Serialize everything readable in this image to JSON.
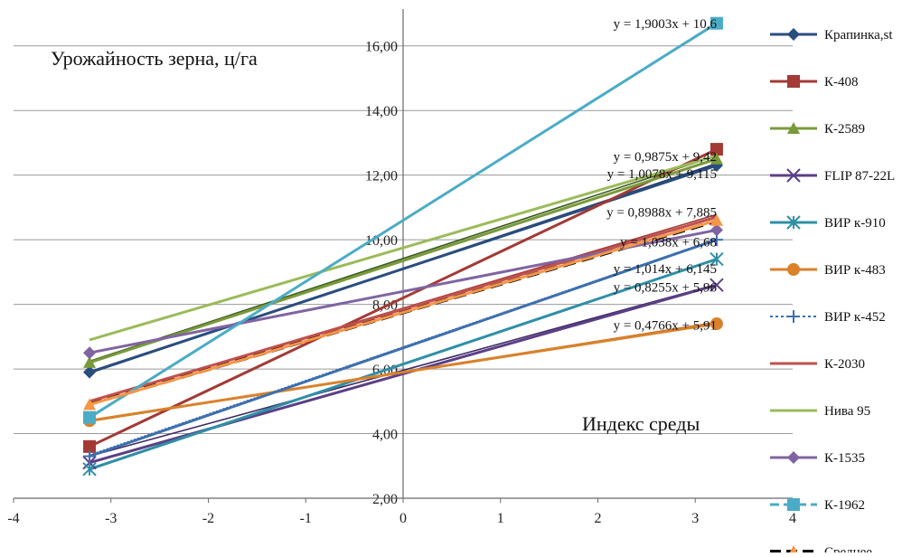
{
  "chart_data": {
    "type": "scatter",
    "ylabel": "Урожайность зерна, ц/га",
    "xlabel": "Индекс среды",
    "xlim": [
      -4,
      4
    ],
    "ylim": [
      2,
      17
    ],
    "x_ticks": [
      "-4",
      "-3",
      "-2",
      "-1",
      "0",
      "1",
      "2",
      "3",
      "4"
    ],
    "y_ticks": [
      "2,00",
      "4,00",
      "6,00",
      "8,00",
      "10,00",
      "12,00",
      "14,00",
      "16,00"
    ],
    "x_tick_values": [
      -4,
      -3,
      -2,
      -1,
      0,
      1,
      2,
      3,
      4
    ],
    "y_tick_values": [
      2,
      4,
      6,
      8,
      10,
      12,
      14,
      16
    ],
    "grid": "horizontal",
    "legend_position": "right",
    "x_points": [
      -3.22,
      3.22
    ],
    "series": [
      {
        "name": "Крапинка,st",
        "color": "#2a4d7f",
        "marker": "diamond",
        "points": [
          5.9,
          12.3
        ]
      },
      {
        "name": "К-408",
        "color": "#a33a36",
        "marker": "square",
        "points": [
          3.6,
          12.8
        ]
      },
      {
        "name": "К-2589",
        "color": "#7a9a3a",
        "marker": "triangle",
        "points": [
          6.2,
          12.5
        ]
      },
      {
        "name": "FLIP 87-22L",
        "color": "#5b3f86",
        "marker": "x",
        "points": [
          3.1,
          8.6
        ]
      },
      {
        "name": "ВИР к-910",
        "color": "#2f8fa6",
        "marker": "asterisk",
        "points": [
          2.9,
          9.4
        ]
      },
      {
        "name": "ВИР к-483",
        "color": "#d9822b",
        "marker": "circle",
        "points": [
          4.4,
          7.4
        ]
      },
      {
        "name": "ВИР к-452",
        "color": "#3d6fb0",
        "marker": "plus",
        "points": [
          3.3,
          10.0
        ]
      },
      {
        "name": "К-2030",
        "color": "#c0504d",
        "marker": "none",
        "points": [
          5.0,
          10.7
        ]
      },
      {
        "name": "Нива 95",
        "color": "#9bbb59",
        "marker": "none",
        "points": [
          6.9,
          12.6
        ]
      },
      {
        "name": "К-1535",
        "color": "#8064a2",
        "marker": "diamond",
        "points": [
          6.5,
          10.3
        ]
      },
      {
        "name": "К-1962",
        "color": "#4bacc6",
        "marker": "square",
        "points": [
          4.5,
          16.7
        ]
      },
      {
        "name": "Среднее",
        "color": "#f79646",
        "marker": "triangle",
        "points": [
          4.9,
          10.6
        ]
      }
    ],
    "trendlines": [
      {
        "label": "y = 1,9003x + 10,6",
        "slope": 1.9003,
        "intercept": 10.6,
        "color": "#4bacc6",
        "dash": "10,5",
        "stroke": "#1f5f6e"
      },
      {
        "label": "y = 0,9875x + 9,42",
        "slope": 0.9875,
        "intercept": 9.42,
        "color": "#3a5a1f",
        "dash": ""
      },
      {
        "label": "y = 1,0078x + 9,115",
        "slope": 1.0078,
        "intercept": 9.115,
        "color": "#1f3a5f",
        "dash": ""
      },
      {
        "label": "y = 0,8988x + 7,885",
        "slope": 0.8988,
        "intercept": 7.885,
        "color": "#a33a36",
        "dash": ""
      },
      {
        "label": "y = 1,038x + 6,68",
        "slope": 1.038,
        "intercept": 6.68,
        "color": "#2f5f9f",
        "dash": "2,2"
      },
      {
        "label": "y = 1,014x + 6,145",
        "slope": 1.014,
        "intercept": 6.145,
        "color": "#1f6f86",
        "dash": ""
      },
      {
        "label": "y = 0,8255x + 5,96",
        "slope": 0.8255,
        "intercept": 5.96,
        "color": "#3f2a66",
        "dash": ""
      },
      {
        "label": "y = 0,4766x + 5,91",
        "slope": 0.4766,
        "intercept": 5.91,
        "color": "#b8621a",
        "dash": ""
      },
      {
        "label": "",
        "slope": 0.88,
        "intercept": 7.75,
        "color": "#000000",
        "dash": "14,7",
        "width": 4
      }
    ]
  }
}
